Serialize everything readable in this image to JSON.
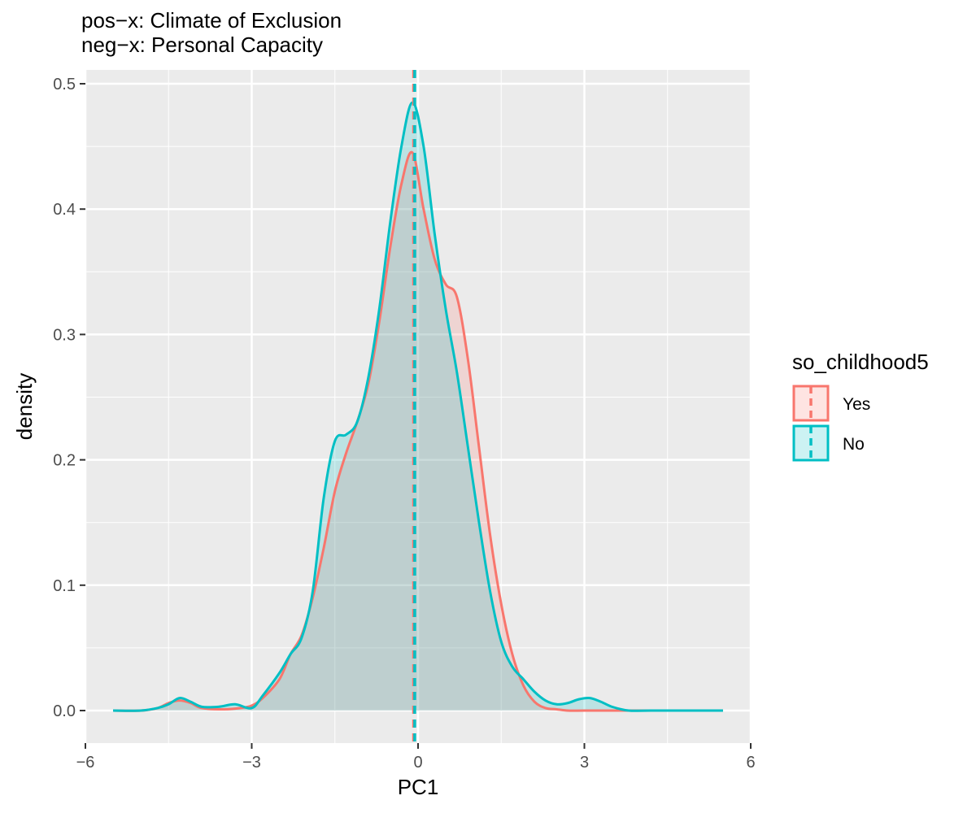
{
  "chart_data": {
    "type": "area",
    "title_line1": "pos−x: Climate of Exclusion",
    "title_line2": "neg−x: Personal Capacity",
    "xlabel": "PC1",
    "ylabel": "density",
    "xlim": [
      -6,
      6
    ],
    "ylim": [
      0,
      0.5
    ],
    "x_ticks": [
      -6,
      -3,
      0,
      3,
      6
    ],
    "x_tick_labels": [
      "−6",
      "−3",
      "0",
      "3",
      "6"
    ],
    "y_ticks": [
      0.0,
      0.1,
      0.2,
      0.3,
      0.4,
      0.5
    ],
    "y_tick_labels": [
      "0.0",
      "0.1",
      "0.2",
      "0.3",
      "0.4",
      "0.5"
    ],
    "grid": true,
    "legend": {
      "title": "so_childhood5",
      "position": "right"
    },
    "series": [
      {
        "name": "Yes",
        "color": "#F8766D",
        "fill": "#F8766D",
        "mean": -0.08,
        "x": [
          -5.5,
          -5.0,
          -4.7,
          -4.5,
          -4.3,
          -4.1,
          -3.9,
          -3.5,
          -3.2,
          -3.0,
          -2.8,
          -2.5,
          -2.3,
          -2.1,
          -1.9,
          -1.7,
          -1.5,
          -1.3,
          -1.1,
          -0.9,
          -0.7,
          -0.5,
          -0.3,
          -0.1,
          0.1,
          0.3,
          0.5,
          0.7,
          0.9,
          1.1,
          1.3,
          1.5,
          1.7,
          1.9,
          2.1,
          2.3,
          2.5,
          2.7,
          3.0,
          3.5,
          4.0,
          5.5
        ],
        "y": [
          0.0,
          0.0,
          0.002,
          0.006,
          0.008,
          0.006,
          0.002,
          0.001,
          0.002,
          0.004,
          0.01,
          0.025,
          0.045,
          0.06,
          0.09,
          0.13,
          0.175,
          0.205,
          0.23,
          0.26,
          0.31,
          0.37,
          0.42,
          0.445,
          0.4,
          0.36,
          0.34,
          0.33,
          0.28,
          0.21,
          0.14,
          0.085,
          0.045,
          0.02,
          0.007,
          0.002,
          0.001,
          0.0,
          0.0,
          0.0,
          0.0,
          0.0
        ]
      },
      {
        "name": "No",
        "color": "#00BFC4",
        "fill": "#00BFC4",
        "mean": -0.06,
        "x": [
          -5.5,
          -5.0,
          -4.7,
          -4.5,
          -4.3,
          -4.1,
          -3.9,
          -3.6,
          -3.3,
          -3.0,
          -2.8,
          -2.5,
          -2.3,
          -2.1,
          -1.9,
          -1.7,
          -1.5,
          -1.3,
          -1.1,
          -0.9,
          -0.7,
          -0.5,
          -0.3,
          -0.1,
          0.1,
          0.3,
          0.5,
          0.7,
          0.9,
          1.1,
          1.3,
          1.5,
          1.7,
          1.9,
          2.1,
          2.3,
          2.5,
          2.7,
          2.9,
          3.1,
          3.3,
          3.5,
          3.8,
          4.2,
          5.5
        ],
        "y": [
          0.0,
          0.0,
          0.002,
          0.005,
          0.01,
          0.007,
          0.003,
          0.003,
          0.005,
          0.002,
          0.012,
          0.03,
          0.045,
          0.058,
          0.095,
          0.17,
          0.215,
          0.22,
          0.23,
          0.265,
          0.32,
          0.39,
          0.45,
          0.485,
          0.45,
          0.38,
          0.32,
          0.27,
          0.21,
          0.15,
          0.095,
          0.055,
          0.035,
          0.025,
          0.015,
          0.008,
          0.005,
          0.006,
          0.009,
          0.01,
          0.007,
          0.003,
          0.0,
          0.0,
          0.0
        ]
      }
    ]
  }
}
